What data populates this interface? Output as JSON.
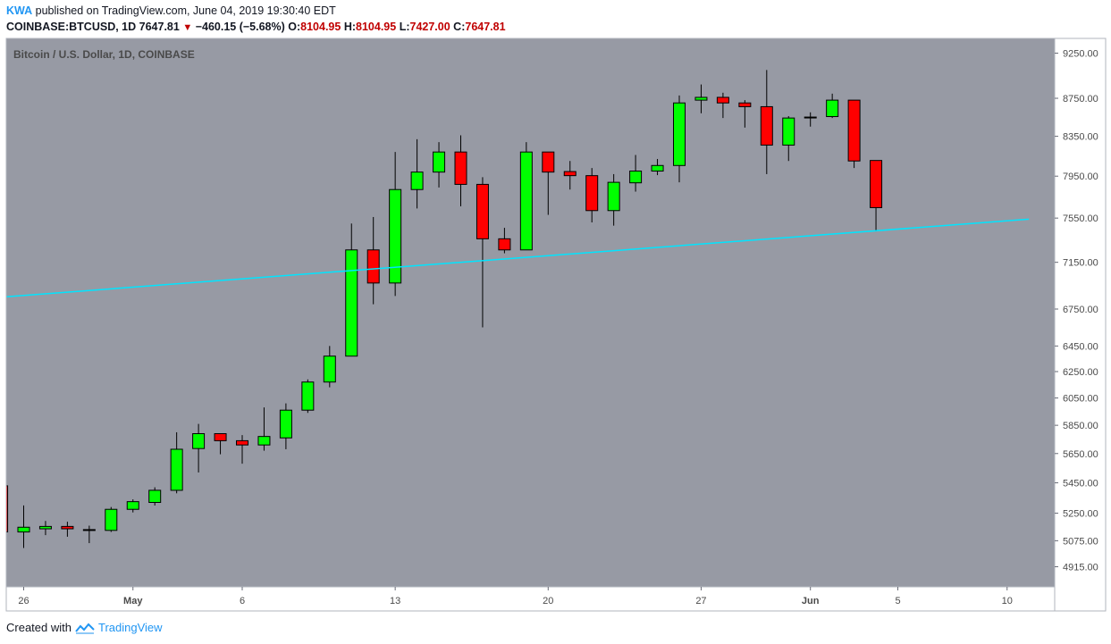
{
  "header": {
    "author": "KWA",
    "published_text": "published on TradingView.com, June 04, 2019 19:30:40 EDT",
    "symbol": "COINBASE:BTCUSD, 1D",
    "last": "7647.81",
    "change": "−460.15 (−5.68%)",
    "o_label": "O:",
    "o_value": "8104.95",
    "h_label": "H:",
    "h_value": "8104.95",
    "l_label": "L:",
    "l_value": "7427.00",
    "c_label": "C:",
    "c_value": "7647.81"
  },
  "footer": {
    "created_with": "Created with",
    "brand": "TradingView"
  },
  "chart_data": {
    "type": "candlestick",
    "title": "Bitcoin / U.S. Dollar, 1D, COINBASE",
    "price_scale": "log",
    "y_ticks": [
      "9250.00",
      "8750.00",
      "8350.00",
      "7950.00",
      "7550.00",
      "7150.00",
      "6750.00",
      "6450.00",
      "6250.00",
      "6050.00",
      "5850.00",
      "5650.00",
      "5450.00",
      "5250.00",
      "5075.00",
      "4915.00"
    ],
    "x_ticks": [
      {
        "label": "26",
        "date": "2019-04-26"
      },
      {
        "label": "May",
        "date": "2019-05-01"
      },
      {
        "label": "6",
        "date": "2019-05-06"
      },
      {
        "label": "13",
        "date": "2019-05-13"
      },
      {
        "label": "20",
        "date": "2019-05-20"
      },
      {
        "label": "27",
        "date": "2019-05-27"
      },
      {
        "label": "Jun",
        "date": "2019-06-01"
      },
      {
        "label": "5",
        "date": "2019-06-05"
      },
      {
        "label": "10",
        "date": "2019-06-10"
      }
    ],
    "x_range": [
      "2019-04-25",
      "2019-06-11"
    ],
    "candles": [
      {
        "date": "2019-04-25",
        "o": 5430,
        "h": 5430,
        "l": 5130,
        "c": 5130
      },
      {
        "date": "2019-04-26",
        "o": 5130,
        "h": 5300,
        "l": 5030,
        "c": 5160
      },
      {
        "date": "2019-04-27",
        "o": 5150,
        "h": 5200,
        "l": 5110,
        "c": 5165
      },
      {
        "date": "2019-04-28",
        "o": 5165,
        "h": 5195,
        "l": 5100,
        "c": 5150
      },
      {
        "date": "2019-04-29",
        "o": 5145,
        "h": 5170,
        "l": 5060,
        "c": 5145
      },
      {
        "date": "2019-04-30",
        "o": 5140,
        "h": 5290,
        "l": 5130,
        "c": 5275
      },
      {
        "date": "2019-05-01",
        "o": 5275,
        "h": 5340,
        "l": 5255,
        "c": 5325
      },
      {
        "date": "2019-05-02",
        "o": 5320,
        "h": 5420,
        "l": 5300,
        "c": 5400
      },
      {
        "date": "2019-05-03",
        "o": 5400,
        "h": 5800,
        "l": 5380,
        "c": 5680
      },
      {
        "date": "2019-05-04",
        "o": 5685,
        "h": 5860,
        "l": 5520,
        "c": 5790
      },
      {
        "date": "2019-05-05",
        "o": 5790,
        "h": 5790,
        "l": 5645,
        "c": 5740
      },
      {
        "date": "2019-05-06",
        "o": 5740,
        "h": 5780,
        "l": 5580,
        "c": 5710
      },
      {
        "date": "2019-05-07",
        "o": 5710,
        "h": 5980,
        "l": 5670,
        "c": 5770
      },
      {
        "date": "2019-05-08",
        "o": 5760,
        "h": 6010,
        "l": 5680,
        "c": 5960
      },
      {
        "date": "2019-05-09",
        "o": 5960,
        "h": 6190,
        "l": 5940,
        "c": 6170
      },
      {
        "date": "2019-05-10",
        "o": 6170,
        "h": 6450,
        "l": 6130,
        "c": 6370
      },
      {
        "date": "2019-05-11",
        "o": 6370,
        "h": 7500,
        "l": 6370,
        "c": 7260
      },
      {
        "date": "2019-05-12",
        "o": 7260,
        "h": 7560,
        "l": 6790,
        "c": 6970
      },
      {
        "date": "2019-05-13",
        "o": 6970,
        "h": 8190,
        "l": 6860,
        "c": 7820
      },
      {
        "date": "2019-05-14",
        "o": 7820,
        "h": 8320,
        "l": 7640,
        "c": 7990
      },
      {
        "date": "2019-05-15",
        "o": 7990,
        "h": 8290,
        "l": 7840,
        "c": 8190
      },
      {
        "date": "2019-05-16",
        "o": 8190,
        "h": 8360,
        "l": 7660,
        "c": 7870
      },
      {
        "date": "2019-05-17",
        "o": 7870,
        "h": 7940,
        "l": 6600,
        "c": 7360
      },
      {
        "date": "2019-05-18",
        "o": 7360,
        "h": 7460,
        "l": 7230,
        "c": 7260
      },
      {
        "date": "2019-05-19",
        "o": 7260,
        "h": 8290,
        "l": 7260,
        "c": 8190
      },
      {
        "date": "2019-05-20",
        "o": 8190,
        "h": 8190,
        "l": 7580,
        "c": 7990
      },
      {
        "date": "2019-05-21",
        "o": 7995,
        "h": 8100,
        "l": 7820,
        "c": 7955
      },
      {
        "date": "2019-05-22",
        "o": 7955,
        "h": 8030,
        "l": 7510,
        "c": 7620
      },
      {
        "date": "2019-05-23",
        "o": 7620,
        "h": 7970,
        "l": 7480,
        "c": 7890
      },
      {
        "date": "2019-05-24",
        "o": 7885,
        "h": 8160,
        "l": 7800,
        "c": 8000
      },
      {
        "date": "2019-05-25",
        "o": 8000,
        "h": 8120,
        "l": 7960,
        "c": 8055
      },
      {
        "date": "2019-05-26",
        "o": 8055,
        "h": 8780,
        "l": 7890,
        "c": 8700
      },
      {
        "date": "2019-05-27",
        "o": 8730,
        "h": 8900,
        "l": 8590,
        "c": 8760
      },
      {
        "date": "2019-05-28",
        "o": 8760,
        "h": 8810,
        "l": 8540,
        "c": 8700
      },
      {
        "date": "2019-05-29",
        "o": 8700,
        "h": 8730,
        "l": 8440,
        "c": 8660
      },
      {
        "date": "2019-05-30",
        "o": 8660,
        "h": 9060,
        "l": 7970,
        "c": 8260
      },
      {
        "date": "2019-05-31",
        "o": 8260,
        "h": 8560,
        "l": 8100,
        "c": 8540
      },
      {
        "date": "2019-06-01",
        "o": 8545,
        "h": 8600,
        "l": 8450,
        "c": 8550
      },
      {
        "date": "2019-06-02",
        "o": 8555,
        "h": 8800,
        "l": 8540,
        "c": 8730
      },
      {
        "date": "2019-06-03",
        "o": 8730,
        "h": 8730,
        "l": 8030,
        "c": 8100
      },
      {
        "date": "2019-06-04",
        "o": 8104.95,
        "h": 8104.95,
        "l": 7427.0,
        "c": 7647.81
      }
    ],
    "trendline": {
      "from": {
        "date": "2019-04-25",
        "price": 6850
      },
      "to": {
        "date": "2019-06-11",
        "price": 7540
      },
      "color": "#00e5ff"
    },
    "colors": {
      "up": "#00ff00",
      "down": "#ff0000",
      "background": "#979aa4",
      "wick": "#000000"
    }
  }
}
